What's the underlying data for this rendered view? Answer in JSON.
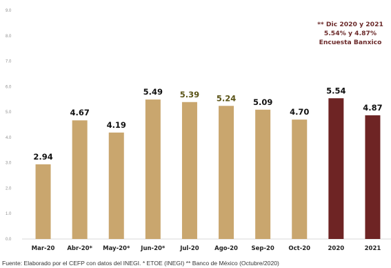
{
  "chart_data": {
    "type": "bar",
    "categories": [
      "Mar-20",
      "Abr-20*",
      "May-20*",
      "Jun-20*",
      "Jul-20",
      "Ago-20",
      "Sep-20",
      "Oct-20",
      "2020",
      "2021"
    ],
    "values": [
      2.94,
      4.67,
      4.19,
      5.49,
      5.39,
      5.24,
      5.09,
      4.7,
      5.54,
      4.87
    ],
    "value_labels": [
      "2.94",
      "4.67",
      "4.19",
      "5.49",
      "5.39",
      "5.24",
      "5.09",
      "4.70",
      "5.54",
      "4.87"
    ],
    "ylim": [
      0,
      9
    ],
    "y_ticks": [
      "0.0",
      "1.0",
      "2.0",
      "3.0",
      "4.0",
      "5.0",
      "6.0",
      "7.0",
      "8.0",
      "9.0"
    ],
    "grid": false,
    "bar_colors": [
      "#c9a66e",
      "#c9a66e",
      "#c9a66e",
      "#c9a66e",
      "#c9a66e",
      "#c9a66e",
      "#c9a66e",
      "#c9a66e",
      "#6e2424",
      "#6e2424"
    ],
    "label_colors": [
      "#111111",
      "#111111",
      "#111111",
      "#111111",
      "#5b5418",
      "#5b5418",
      "#111111",
      "#111111",
      "#111111",
      "#111111"
    ],
    "annotation": [
      "** Dic 2020 y 2021",
      "5.54% y 4.87%",
      "Encuesta Banxico"
    ]
  },
  "source_note": "Fuente: Elaborado por el CEFP con datos del INEGI.  * ETOE (INEGI) ** Banco de México (Octubre/2020)"
}
